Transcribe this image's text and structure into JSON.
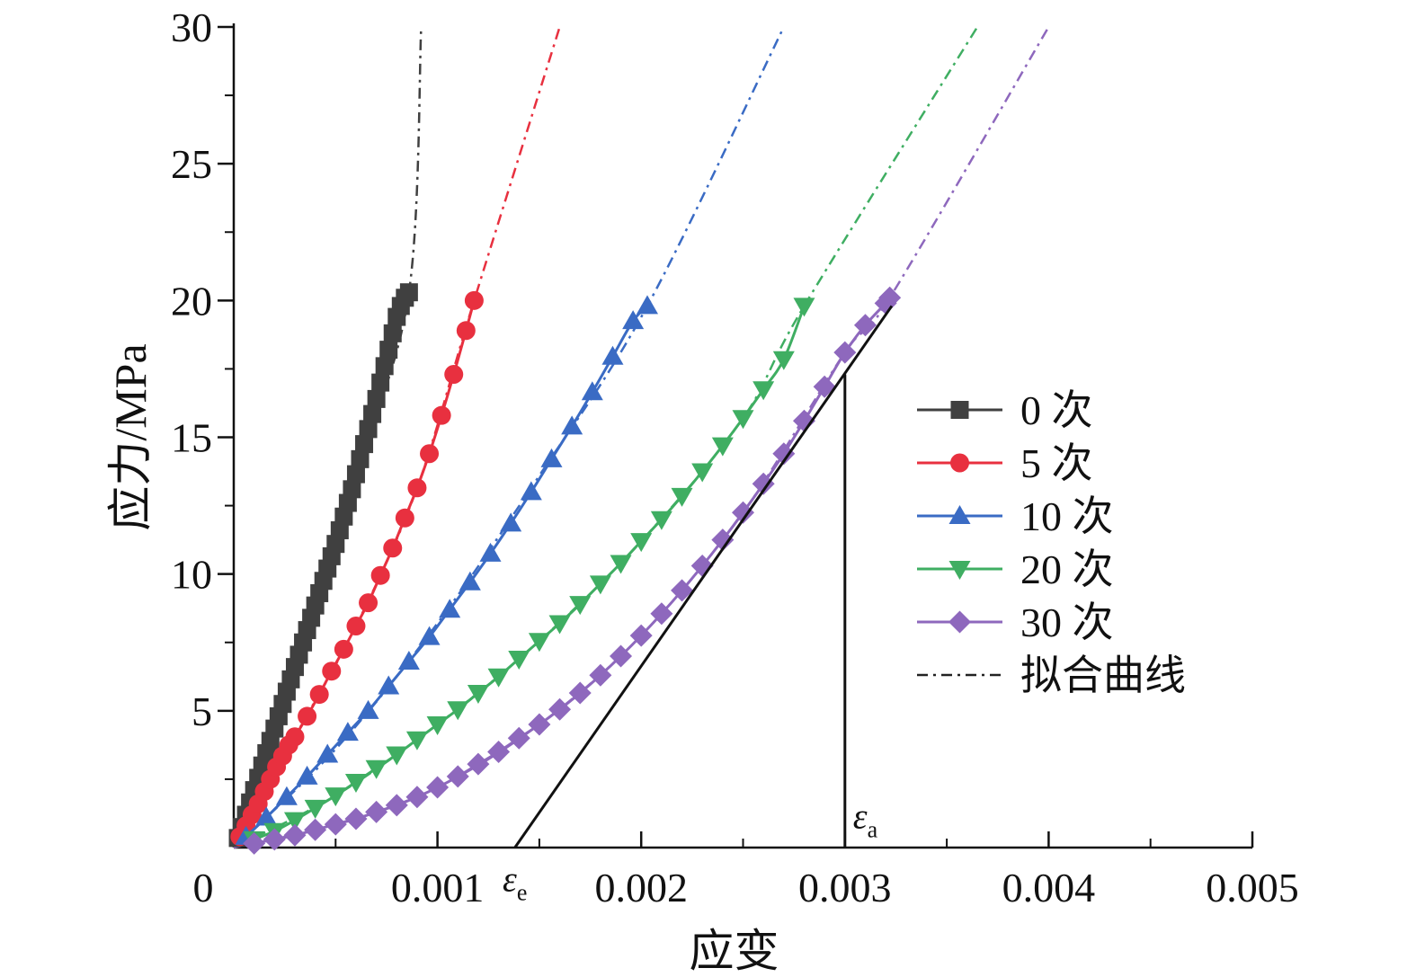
{
  "chart_data": {
    "type": "line",
    "title": "",
    "xlabel": "应变",
    "ylabel": "应力/MPa",
    "xlim": [
      0,
      0.005
    ],
    "ylim": [
      0,
      30
    ],
    "xticks": [
      0.001,
      0.002,
      0.003,
      0.004,
      0.005
    ],
    "xtick_labels": [
      "0.001",
      "0.002",
      "0.003",
      "0.004",
      "0.005"
    ],
    "yticks": [
      5,
      10,
      15,
      20,
      25,
      30
    ],
    "ytick_labels": [
      "5",
      "10",
      "15",
      "20",
      "25",
      "30"
    ],
    "origin_label": "0",
    "grid": false,
    "legend_position": "right",
    "series": [
      {
        "name": "0 次",
        "marker": "square",
        "color": "#404040",
        "x": [
          2e-05,
          4e-05,
          6e-05,
          8e-05,
          0.0001,
          0.00012,
          0.00014,
          0.00016,
          0.00018,
          0.0002,
          0.00022,
          0.00024,
          0.00026,
          0.00028,
          0.0003,
          0.00032,
          0.00034,
          0.00036,
          0.00038,
          0.0004,
          0.00042,
          0.00044,
          0.00046,
          0.00048,
          0.0005,
          0.00052,
          0.00054,
          0.00056,
          0.00058,
          0.0006,
          0.00062,
          0.00064,
          0.00066,
          0.00068,
          0.0007,
          0.00072,
          0.00074,
          0.00076,
          0.00078,
          0.0008,
          0.00082,
          0.00084,
          0.00086
        ],
        "y": [
          0.35,
          0.75,
          1.2,
          1.65,
          2.1,
          2.55,
          3.0,
          3.45,
          3.9,
          4.35,
          4.8,
          5.25,
          5.7,
          6.15,
          6.6,
          7.05,
          7.5,
          7.95,
          8.4,
          8.85,
          9.3,
          9.75,
          10.2,
          10.65,
          11.1,
          11.6,
          12.1,
          12.6,
          13.1,
          13.65,
          14.2,
          14.75,
          15.3,
          15.85,
          16.4,
          17.0,
          17.6,
          18.2,
          18.8,
          19.4,
          19.8,
          20.1,
          20.3
        ]
      },
      {
        "name": "5 次",
        "marker": "circle",
        "color": "#e8303f",
        "x": [
          3e-05,
          6e-05,
          9e-05,
          0.00012,
          0.00015,
          0.00018,
          0.00021,
          0.00024,
          0.00027,
          0.0003,
          0.00036,
          0.00042,
          0.00048,
          0.00054,
          0.0006,
          0.00066,
          0.00072,
          0.00078,
          0.00084,
          0.0009,
          0.00096,
          0.00102,
          0.00108,
          0.00114,
          0.00118
        ],
        "y": [
          0.4,
          0.8,
          1.2,
          1.6,
          2.05,
          2.5,
          2.95,
          3.35,
          3.75,
          4.05,
          4.8,
          5.6,
          6.45,
          7.25,
          8.1,
          8.95,
          9.95,
          10.95,
          12.05,
          13.15,
          14.4,
          15.8,
          17.3,
          18.9,
          20.0
        ]
      },
      {
        "name": "10 次",
        "marker": "triangle-up",
        "color": "#3a6bc4",
        "x": [
          6e-05,
          0.00016,
          0.00026,
          0.00036,
          0.00046,
          0.00056,
          0.00066,
          0.00076,
          0.00086,
          0.00096,
          0.00106,
          0.00116,
          0.00126,
          0.00136,
          0.00146,
          0.00156,
          0.00166,
          0.00176,
          0.00186,
          0.00196,
          0.00203
        ],
        "y": [
          0.4,
          1.1,
          1.85,
          2.6,
          3.4,
          4.2,
          5.0,
          5.9,
          6.8,
          7.7,
          8.7,
          9.7,
          10.75,
          11.85,
          13.0,
          14.2,
          15.4,
          16.65,
          17.95,
          19.25,
          19.8
        ]
      },
      {
        "name": "20 次",
        "marker": "triangle-down",
        "color": "#3fae62",
        "x": [
          0.0001,
          0.0002,
          0.0003,
          0.0004,
          0.0005,
          0.0006,
          0.0007,
          0.0008,
          0.0009,
          0.001,
          0.0011,
          0.0012,
          0.0013,
          0.0014,
          0.0015,
          0.0016,
          0.0017,
          0.0018,
          0.0019,
          0.002,
          0.0021,
          0.0022,
          0.0023,
          0.0024,
          0.0025,
          0.0026,
          0.0027,
          0.0028
        ],
        "y": [
          0.3,
          0.6,
          1.0,
          1.45,
          1.9,
          2.4,
          2.9,
          3.4,
          3.95,
          4.5,
          5.05,
          5.65,
          6.25,
          6.9,
          7.55,
          8.2,
          8.9,
          9.65,
          10.4,
          11.2,
          12.0,
          12.85,
          13.75,
          14.7,
          15.7,
          16.75,
          17.85,
          19.8
        ]
      },
      {
        "name": "30 次",
        "marker": "diamond",
        "color": "#8e68bd",
        "x": [
          0.0001,
          0.0002,
          0.0003,
          0.0004,
          0.0005,
          0.0006,
          0.0007,
          0.0008,
          0.0009,
          0.001,
          0.0011,
          0.0012,
          0.0013,
          0.0014,
          0.0015,
          0.0016,
          0.0017,
          0.0018,
          0.0019,
          0.002,
          0.0021,
          0.0022,
          0.0023,
          0.0024,
          0.0025,
          0.0026,
          0.0027,
          0.0028,
          0.0029,
          0.003,
          0.0031,
          0.0032,
          0.00322
        ],
        "y": [
          0.15,
          0.3,
          0.45,
          0.65,
          0.85,
          1.05,
          1.3,
          1.55,
          1.85,
          2.2,
          2.6,
          3.05,
          3.5,
          4.0,
          4.5,
          5.05,
          5.65,
          6.3,
          7.0,
          7.75,
          8.55,
          9.4,
          10.3,
          11.25,
          12.25,
          13.3,
          14.4,
          15.6,
          16.85,
          18.1,
          19.1,
          19.9,
          20.1
        ]
      },
      {
        "name": "拟合曲线",
        "marker": "none",
        "color": "#222222",
        "dash": "dash-dot",
        "fits": [
          {
            "color": "#404040",
            "x": [
              0.0,
              0.0003,
              0.0006,
              0.00086,
              0.00092
            ],
            "y": [
              0.0,
              6.6,
              13.65,
              20.3,
              30.0
            ]
          },
          {
            "color": "#e8303f",
            "x": [
              0.0,
              0.0003,
              0.0006,
              0.0009,
              0.00118,
              0.0016
            ],
            "y": [
              0.0,
              4.05,
              8.1,
              13.15,
              20.0,
              30.0
            ]
          },
          {
            "color": "#3a6bc4",
            "x": [
              0.0,
              0.0005,
              0.001,
              0.0015,
              0.00203,
              0.0027
            ],
            "y": [
              0.0,
              3.6,
              8.2,
              13.6,
              19.8,
              30.0
            ]
          },
          {
            "color": "#3fae62",
            "x": [
              0.0,
              0.0005,
              0.001,
              0.0015,
              0.002,
              0.0025,
              0.0028,
              0.00365
            ],
            "y": [
              0.0,
              1.9,
              4.5,
              7.55,
              11.2,
              15.7,
              19.8,
              30.0
            ]
          },
          {
            "color": "#8e68bd",
            "x": [
              0.0,
              0.0005,
              0.001,
              0.0015,
              0.002,
              0.0025,
              0.003,
              0.00322,
              0.004
            ],
            "y": [
              0.0,
              0.85,
              2.2,
              4.5,
              7.75,
              12.25,
              18.1,
              20.1,
              30.0
            ]
          }
        ]
      }
    ],
    "annotations": [
      {
        "type": "line",
        "from": [
          0.00138,
          0.0
        ],
        "to": [
          0.00323,
          19.8
        ],
        "color": "#111111"
      },
      {
        "type": "line",
        "from": [
          0.003,
          0.0
        ],
        "to": [
          0.003,
          17.3
        ],
        "color": "#111111"
      },
      {
        "type": "label",
        "text": "ε",
        "subscript": "e",
        "at": [
          0.00138,
          -1.2
        ]
      },
      {
        "type": "label",
        "text": "ε",
        "subscript": "a",
        "at": [
          0.0031,
          1.1
        ]
      }
    ]
  }
}
